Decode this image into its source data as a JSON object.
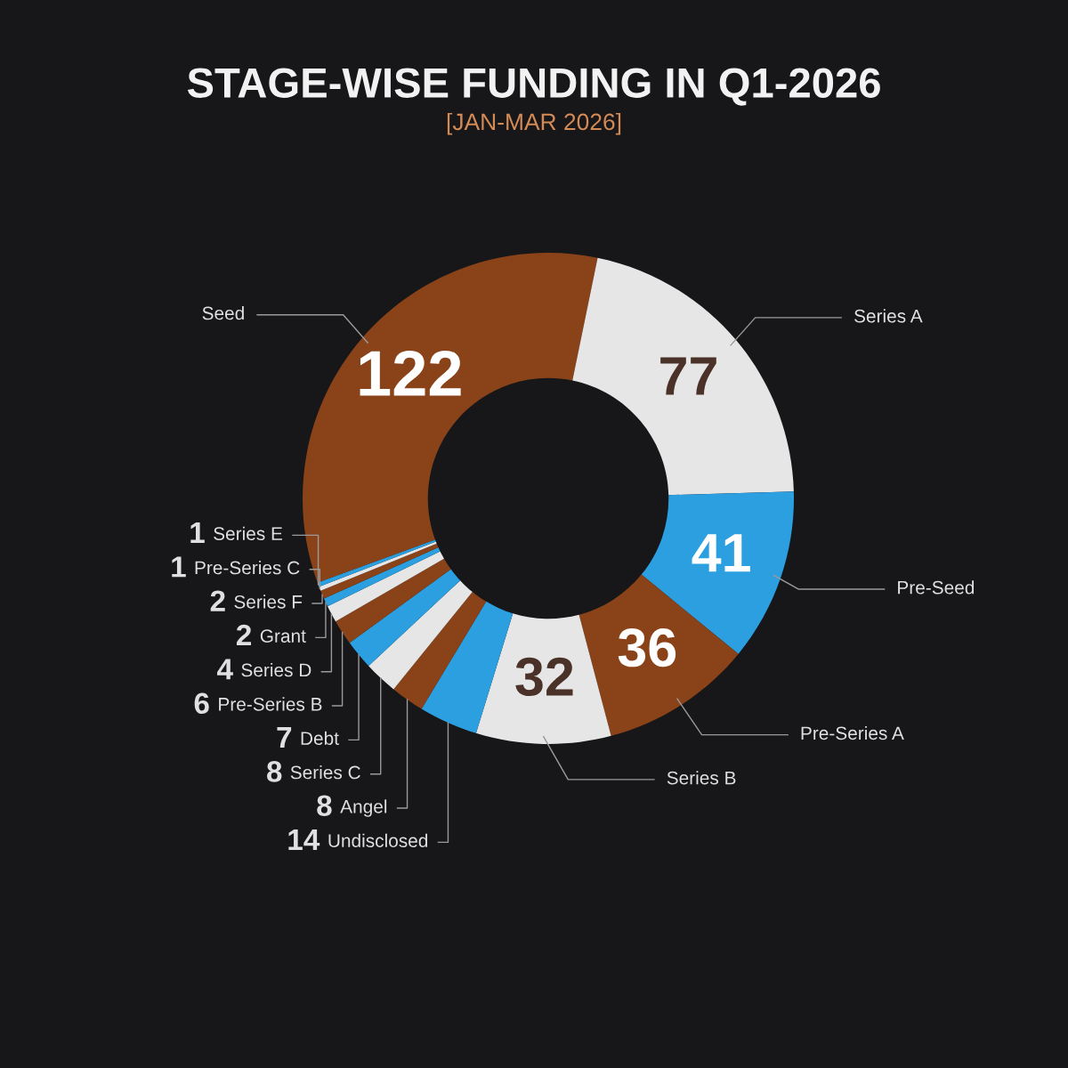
{
  "chart_data": {
    "type": "donut",
    "title": "STAGE-WISE FUNDING IN Q1-2026",
    "subtitle": "[JAN-MAR 2026]",
    "categories": [
      "Seed",
      "Series A",
      "Pre-Seed",
      "Pre-Series A",
      "Series B",
      "Undisclosed",
      "Angel",
      "Series C",
      "Debt",
      "Pre-Series B",
      "Series D",
      "Grant",
      "Series F",
      "Pre-Series C",
      "Series E"
    ],
    "values": [
      122,
      77,
      41,
      36,
      32,
      14,
      8,
      8,
      7,
      6,
      4,
      2,
      2,
      1,
      1
    ],
    "colors": [
      "#8a4318",
      "#e6e6e6",
      "#2b9fe0",
      "#8a4318",
      "#e6e6e6",
      "#2b9fe0",
      "#8a4318",
      "#e6e6e6",
      "#2b9fe0",
      "#8a4318",
      "#e6e6e6",
      "#2b9fe0",
      "#8a4318",
      "#e6e6e6",
      "#2b9fe0"
    ],
    "data_labels": true
  }
}
